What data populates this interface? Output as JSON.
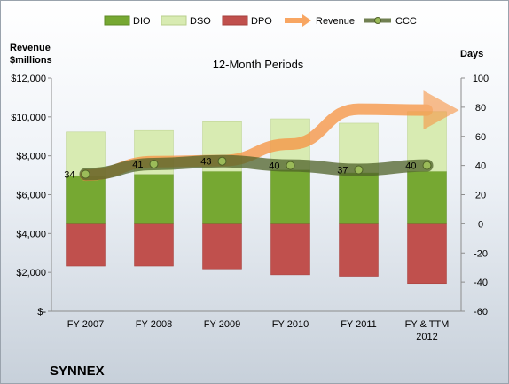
{
  "chart_data": {
    "type": "bar",
    "title": "12-Month Periods",
    "company": "SYNNEX",
    "left_axis_label": [
      "Revenue",
      "$millions"
    ],
    "right_axis_label": "Days",
    "categories": [
      "FY 2007",
      "FY 2008",
      "FY 2009",
      "FY 2010",
      "FY 2011",
      "FY & TTM 2012"
    ],
    "left_ylim": [
      0,
      12000
    ],
    "left_ticks": [
      "$-",
      "$2,000",
      "$4,000",
      "$6,000",
      "$8,000",
      "$10,000",
      "$12,000"
    ],
    "right_ylim": [
      -60,
      100
    ],
    "right_ticks": [
      "-60",
      "-40",
      "-20",
      "0",
      "20",
      "40",
      "60",
      "80",
      "100"
    ],
    "grid": false,
    "legend_placement": "top",
    "series": [
      {
        "name": "DIO",
        "axis": "right",
        "color": "#76a832",
        "values": [
          33,
          34,
          36,
          37,
          35,
          36
        ]
      },
      {
        "name": "DSO",
        "axis": "right",
        "color": "#d8ebb2",
        "values": [
          30,
          30,
          34,
          35,
          34,
          41
        ]
      },
      {
        "name": "DPO",
        "axis": "right",
        "color": "#c0504d",
        "values": [
          -29,
          -29,
          -31,
          -35,
          -36,
          -41
        ]
      },
      {
        "name": "Revenue",
        "axis": "left",
        "color": "#f79646",
        "values": [
          7000,
          7700,
          7750,
          8600,
          10400,
          10350
        ]
      },
      {
        "name": "CCC",
        "axis": "right",
        "color": "#4f6228",
        "values": [
          34,
          41,
          43,
          40,
          37,
          40
        ],
        "labels": [
          "34",
          "41",
          "43",
          "40",
          "37",
          "40"
        ]
      }
    ]
  }
}
